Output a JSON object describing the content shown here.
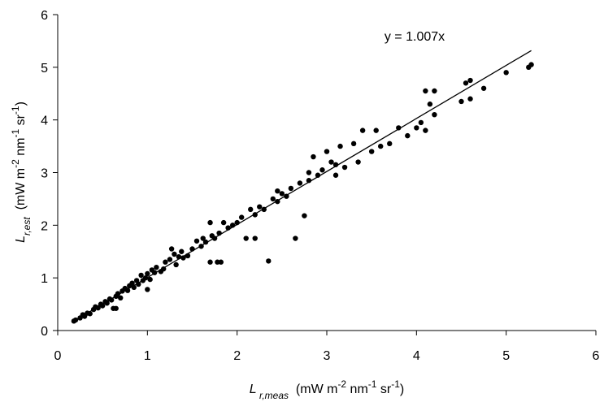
{
  "chart_data": {
    "type": "scatter",
    "x_label": [
      {
        "text": "L",
        "style": "italic"
      },
      {
        "text": " r,meas",
        "style": "sub-italic"
      },
      {
        "text": "  (mW m",
        "style": "normal"
      },
      {
        "text": "-2",
        "style": "sup"
      },
      {
        "text": " nm",
        "style": "normal"
      },
      {
        "text": "-1",
        "style": "sup"
      },
      {
        "text": " sr",
        "style": "normal"
      },
      {
        "text": "-1",
        "style": "sup"
      },
      {
        "text": ")",
        "style": "normal"
      }
    ],
    "y_label": [
      {
        "text": "L",
        "style": "italic"
      },
      {
        "text": "r,est",
        "style": "sub-italic"
      },
      {
        "text": "  (mW m",
        "style": "normal"
      },
      {
        "text": "-2",
        "style": "sup"
      },
      {
        "text": " nm",
        "style": "normal"
      },
      {
        "text": "-1",
        "style": "sup"
      },
      {
        "text": " sr",
        "style": "normal"
      },
      {
        "text": "-1",
        "style": "sup"
      },
      {
        "text": ")",
        "style": "normal"
      }
    ],
    "trendline": {
      "label": "y = 1.007x",
      "slope": 1.007,
      "x": [
        0.18,
        5.28
      ],
      "color": "#000000"
    },
    "color": "#000000",
    "x": [
      0.18,
      0.2,
      0.25,
      0.28,
      0.3,
      0.33,
      0.36,
      0.4,
      0.42,
      0.45,
      0.48,
      0.5,
      0.53,
      0.55,
      0.58,
      0.6,
      0.62,
      0.65,
      0.67,
      0.7,
      0.72,
      0.75,
      0.78,
      0.8,
      0.83,
      0.85,
      0.88,
      0.9,
      0.93,
      0.95,
      0.98,
      1.0,
      1.03,
      1.05,
      1.08,
      1.1,
      1.15,
      1.18,
      1.2,
      1.25,
      1.27,
      1.3,
      1.32,
      1.35,
      1.38,
      1.4,
      1.45,
      1.5,
      1.55,
      1.6,
      1.62,
      1.65,
      1.7,
      1.72,
      1.75,
      1.8,
      1.82,
      1.85,
      1.9,
      1.95,
      2.0,
      2.05,
      2.1,
      2.15,
      2.2,
      2.25,
      2.3,
      2.35,
      2.4,
      2.45,
      2.5,
      2.55,
      2.6,
      2.65,
      2.7,
      2.75,
      2.8,
      2.85,
      2.9,
      2.95,
      3.0,
      3.05,
      3.1,
      3.15,
      3.2,
      3.3,
      3.35,
      3.4,
      3.5,
      3.6,
      3.7,
      3.8,
      3.9,
      4.0,
      4.05,
      4.1,
      4.15,
      4.2,
      4.5,
      4.55,
      4.6,
      4.75,
      5.0,
      5.25,
      5.28,
      1.7,
      1.78,
      2.2,
      3.55,
      4.1,
      4.2,
      4.6,
      0.65,
      1.0,
      2.45,
      2.8,
      3.1
    ],
    "values": [
      0.18,
      0.2,
      0.24,
      0.3,
      0.27,
      0.33,
      0.32,
      0.4,
      0.45,
      0.43,
      0.5,
      0.47,
      0.55,
      0.52,
      0.6,
      0.58,
      0.42,
      0.65,
      0.7,
      0.62,
      0.75,
      0.8,
      0.76,
      0.85,
      0.9,
      0.82,
      0.95,
      0.88,
      1.05,
      0.95,
      1.0,
      1.08,
      0.97,
      1.15,
      1.1,
      1.2,
      1.12,
      1.17,
      1.3,
      1.35,
      1.55,
      1.45,
      1.25,
      1.4,
      1.5,
      1.38,
      1.42,
      1.55,
      1.7,
      1.6,
      1.75,
      1.68,
      2.05,
      1.8,
      1.75,
      1.85,
      1.3,
      2.05,
      1.95,
      2.0,
      2.05,
      2.15,
      1.75,
      2.3,
      2.2,
      2.35,
      2.3,
      1.32,
      2.5,
      2.45,
      2.6,
      2.55,
      2.7,
      1.75,
      2.8,
      2.18,
      2.85,
      3.3,
      2.95,
      3.05,
      3.4,
      3.2,
      3.15,
      3.5,
      3.1,
      3.55,
      3.2,
      3.8,
      3.4,
      3.5,
      3.55,
      3.85,
      3.7,
      3.85,
      3.95,
      4.55,
      4.3,
      4.1,
      4.35,
      4.7,
      4.4,
      4.6,
      4.9,
      5.0,
      5.05,
      1.3,
      1.3,
      1.75,
      3.8,
      3.8,
      4.55,
      4.75,
      0.42,
      0.78,
      2.65,
      3.0,
      2.95
    ],
    "xlim": [
      0,
      6
    ],
    "ylim": [
      0,
      6
    ],
    "xticks": [
      0,
      1,
      2,
      3,
      4,
      5,
      6
    ],
    "yticks": [
      0,
      1,
      2,
      3,
      4,
      5,
      6
    ]
  }
}
